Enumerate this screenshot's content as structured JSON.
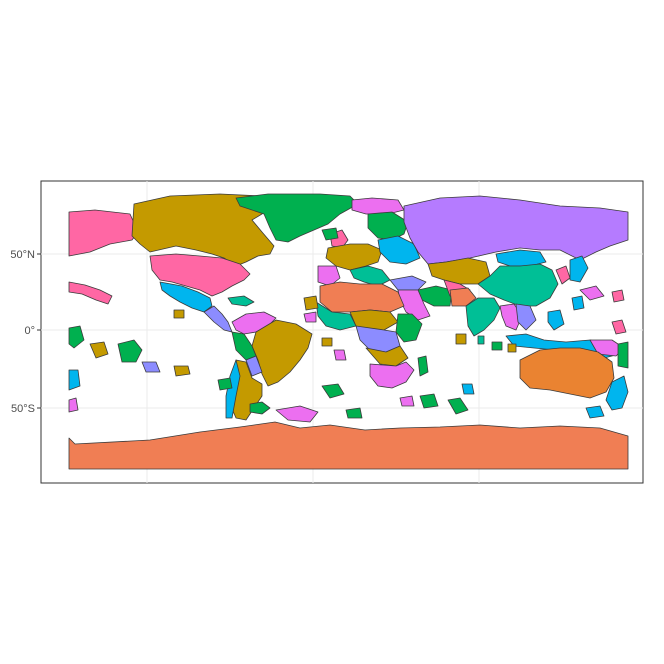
{
  "map": {
    "y_ticks": [
      {
        "lat": 50,
        "label": "50°N"
      },
      {
        "lat": 0,
        "label": "0°"
      },
      {
        "lat": -50,
        "label": "50°S"
      }
    ],
    "lon_range": [
      -180,
      180
    ],
    "lat_range": [
      -90,
      90
    ],
    "grid": true,
    "palette": {
      "violet": "#b57bff",
      "olive": "#c49a00",
      "green": "#00b04f",
      "pink": "#ff67a4",
      "sky": "#00b5ee",
      "teal": "#00bf96",
      "lavender": "#8c8cff",
      "magenta": "#ec6ff0",
      "orange": "#ea8331",
      "salmon": "#f07e54",
      "border": "#3b3b3b"
    }
  }
}
